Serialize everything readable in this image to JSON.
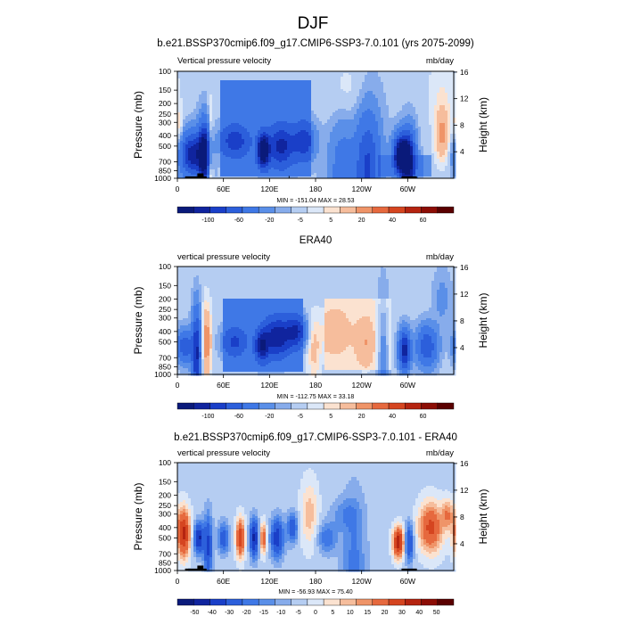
{
  "page": {
    "title": "DJF"
  },
  "chart_data": [
    {
      "type": "heatmap",
      "title": "b.e21.BSSP370cmip6.f09_g17.CMIP6-SSP3-7.0.101 (yrs 2075-2099)",
      "left_string": "Vertical pressure velocity",
      "right_string": "mb/day",
      "ylabel": "Pressure (mb)",
      "ylabel_right": "Height (km)",
      "x_ticks": [
        "0",
        "60E",
        "120E",
        "180",
        "120W",
        "60W"
      ],
      "y_ticks": [
        "100",
        "150",
        "200",
        "250",
        "300",
        "400",
        "500",
        "700",
        "850",
        "1000"
      ],
      "height_ticks": [
        "16",
        "12",
        "8",
        "4"
      ],
      "minmax": "MIN = -151.04  MAX = 28.53",
      "colorbar_labels": [
        "-100",
        "-60",
        "-20",
        "-5",
        "5",
        "20",
        "40",
        "60"
      ],
      "levels": [
        -150,
        -100,
        -80,
        -60,
        -40,
        -20,
        -10,
        -5,
        0,
        5,
        10,
        20,
        30,
        40,
        50,
        60,
        80
      ],
      "colors": [
        "#0a1a7a",
        "#10249e",
        "#1a3fc8",
        "#2c5fdb",
        "#3f78e6",
        "#5a8fe8",
        "#87aceb",
        "#b5cdf2",
        "#dbe7f8",
        "#fbe2d0",
        "#f6bd9c",
        "#ef9468",
        "#e6693e",
        "#d54520",
        "#b52410",
        "#8c0d05",
        "#5a0000"
      ],
      "features": [
        {
          "lon": 20,
          "w": 22,
          "p": 600,
          "h": 520,
          "v": -90
        },
        {
          "lon": 35,
          "w": 10,
          "p": 600,
          "h": 420,
          "v": -110
        },
        {
          "lon": 43,
          "w": 5,
          "p": 800,
          "h": 300,
          "v": 25
        },
        {
          "lon": 75,
          "w": 25,
          "p": 450,
          "h": 450,
          "v": -45
        },
        {
          "lon": 112,
          "w": 10,
          "p": 550,
          "h": 550,
          "v": -120
        },
        {
          "lon": 135,
          "w": 22,
          "p": 500,
          "h": 550,
          "v": -60
        },
        {
          "lon": 165,
          "w": 20,
          "p": 450,
          "h": 420,
          "v": -45
        },
        {
          "lon": 218,
          "w": 35,
          "p": 180,
          "h": 100,
          "v": 10
        },
        {
          "lon": 215,
          "w": 25,
          "p": 880,
          "h": 260,
          "v": -25
        },
        {
          "lon": 248,
          "w": 22,
          "p": 800,
          "h": 320,
          "v": -60
        },
        {
          "lon": 292,
          "w": 14,
          "p": 600,
          "h": 550,
          "v": -130
        },
        {
          "lon": 302,
          "w": 12,
          "p": 700,
          "h": 500,
          "v": -80
        },
        {
          "lon": 345,
          "w": 14,
          "p": 400,
          "h": 300,
          "v": 25
        },
        {
          "lon": 345,
          "w": 30,
          "p": 150,
          "h": 80,
          "v": 8
        },
        {
          "lon": 3,
          "w": 5,
          "p": 350,
          "h": 300,
          "v": 12
        }
      ],
      "fields": [
        {
          "lat_lo": 55,
          "lat_hi": 175,
          "p_lo": 120,
          "p_hi": 950,
          "v": -25
        },
        {
          "lat_lo": 260,
          "lat_hi": 330,
          "p_lo": 600,
          "p_hi": 950,
          "v": -15
        }
      ],
      "background": -4,
      "topo": [
        [
          10,
          38,
          960
        ],
        [
          26,
          34,
          900
        ],
        [
          145,
          146,
          950
        ],
        [
          292,
          312,
          960
        ]
      ]
    },
    {
      "type": "heatmap",
      "title": "ERA40",
      "left_string": "vertical pressure velocity",
      "right_string": "mb/day",
      "ylabel": "Pressure (mb)",
      "ylabel_right": "Height (km)",
      "x_ticks": [
        "0",
        "60E",
        "120E",
        "180",
        "120W",
        "60W"
      ],
      "y_ticks": [
        "100",
        "150",
        "200",
        "250",
        "300",
        "400",
        "500",
        "700",
        "850",
        "1000"
      ],
      "height_ticks": [
        "16",
        "12",
        "8",
        "4"
      ],
      "minmax": "MIN = -112.75  MAX = 33.18",
      "colorbar_labels": [
        "-100",
        "-60",
        "-20",
        "-5",
        "5",
        "20",
        "40",
        "60"
      ],
      "levels": [
        -150,
        -100,
        -80,
        -60,
        -40,
        -20,
        -10,
        -5,
        0,
        5,
        10,
        20,
        30,
        40,
        50,
        60,
        80
      ],
      "colors": [
        "#0a1a7a",
        "#10249e",
        "#1a3fc8",
        "#2c5fdb",
        "#3f78e6",
        "#5a8fe8",
        "#87aceb",
        "#b5cdf2",
        "#dbe7f8",
        "#fbe2d0",
        "#f6bd9c",
        "#ef9468",
        "#e6693e",
        "#d54520",
        "#b52410",
        "#8c0d05",
        "#5a0000"
      ],
      "features": [
        {
          "lon": 10,
          "w": 14,
          "p": 550,
          "h": 550,
          "v": -55
        },
        {
          "lon": 25,
          "w": 8,
          "p": 650,
          "h": 350,
          "v": -80
        },
        {
          "lon": 38,
          "w": 9,
          "p": 500,
          "h": 300,
          "v": 30
        },
        {
          "lon": 75,
          "w": 22,
          "p": 500,
          "h": 500,
          "v": -40
        },
        {
          "lon": 110,
          "w": 12,
          "p": 550,
          "h": 550,
          "v": -70
        },
        {
          "lon": 130,
          "w": 25,
          "p": 450,
          "h": 500,
          "v": -70
        },
        {
          "lon": 155,
          "w": 18,
          "p": 400,
          "h": 400,
          "v": -55
        },
        {
          "lon": 178,
          "w": 12,
          "p": 600,
          "h": 400,
          "v": 15
        },
        {
          "lon": 205,
          "w": 30,
          "p": 400,
          "h": 500,
          "v": 12
        },
        {
          "lon": 245,
          "w": 18,
          "p": 500,
          "h": 400,
          "v": 15
        },
        {
          "lon": 268,
          "w": 10,
          "p": 800,
          "h": 250,
          "v": -20
        },
        {
          "lon": 296,
          "w": 10,
          "p": 600,
          "h": 550,
          "v": -90
        },
        {
          "lon": 325,
          "w": 18,
          "p": 550,
          "h": 500,
          "v": -55
        },
        {
          "lon": 345,
          "w": 16,
          "p": 200,
          "h": 150,
          "v": -10
        }
      ],
      "fields": [
        {
          "lat_lo": 60,
          "lat_hi": 165,
          "p_lo": 200,
          "p_hi": 950,
          "v": -22
        },
        {
          "lat_lo": 190,
          "lat_hi": 280,
          "p_lo": 200,
          "p_hi": 900,
          "v": 8
        }
      ],
      "background": -3,
      "topo": []
    },
    {
      "type": "heatmap",
      "title": "b.e21.BSSP370cmip6.f09_g17.CMIP6-SSP3-7.0.101 - ERA40",
      "left_string": "vertical pressure velocity",
      "right_string": "mb/day",
      "ylabel": "Pressure (mb)",
      "ylabel_right": "Height (km)",
      "x_ticks": [
        "0",
        "60E",
        "120E",
        "180",
        "120W",
        "60W"
      ],
      "y_ticks": [
        "100",
        "150",
        "200",
        "250",
        "300",
        "400",
        "500",
        "700",
        "850",
        "1000"
      ],
      "height_ticks": [
        "16",
        "12",
        "8",
        "4"
      ],
      "minmax": "MIN = -56.93  MAX = 75.40",
      "colorbar_labels": [
        "-50",
        "-40",
        "-30",
        "-20",
        "-15",
        "-10",
        "-5",
        "0",
        "5",
        "10",
        "15",
        "20",
        "30",
        "40",
        "50"
      ],
      "levels": [
        -60,
        -50,
        -40,
        -30,
        -20,
        -15,
        -10,
        -5,
        0,
        5,
        10,
        15,
        20,
        30,
        40,
        50,
        60
      ],
      "colors": [
        "#0a1a7a",
        "#10249e",
        "#1a3fc8",
        "#2c5fdb",
        "#3f78e6",
        "#5a8fe8",
        "#87aceb",
        "#b5cdf2",
        "#dbe7f8",
        "#fbe2d0",
        "#f6bd9c",
        "#ef9468",
        "#e6693e",
        "#d54520",
        "#b52410",
        "#8c0d05",
        "#5a0000"
      ],
      "features": [
        {
          "lon": 8,
          "w": 12,
          "p": 450,
          "h": 550,
          "v": 45
        },
        {
          "lon": 28,
          "w": 9,
          "p": 500,
          "h": 500,
          "v": -40
        },
        {
          "lon": 40,
          "w": 8,
          "p": 600,
          "h": 400,
          "v": -30
        },
        {
          "lon": 60,
          "w": 10,
          "p": 500,
          "h": 500,
          "v": -25
        },
        {
          "lon": 82,
          "w": 8,
          "p": 500,
          "h": 550,
          "v": 40
        },
        {
          "lon": 100,
          "w": 8,
          "p": 500,
          "h": 550,
          "v": -40
        },
        {
          "lon": 112,
          "w": 6,
          "p": 500,
          "h": 500,
          "v": 30
        },
        {
          "lon": 130,
          "w": 12,
          "p": 500,
          "h": 450,
          "v": -35
        },
        {
          "lon": 150,
          "w": 10,
          "p": 400,
          "h": 400,
          "v": -25
        },
        {
          "lon": 172,
          "w": 16,
          "p": 300,
          "h": 450,
          "v": 15
        },
        {
          "lon": 195,
          "w": 18,
          "p": 500,
          "h": 500,
          "v": -18
        },
        {
          "lon": 218,
          "w": 25,
          "p": 300,
          "h": 300,
          "v": -10
        },
        {
          "lon": 230,
          "w": 22,
          "p": 850,
          "h": 250,
          "v": -15
        },
        {
          "lon": 288,
          "w": 10,
          "p": 550,
          "h": 550,
          "v": 50
        },
        {
          "lon": 302,
          "w": 8,
          "p": 550,
          "h": 500,
          "v": -30
        },
        {
          "lon": 330,
          "w": 22,
          "p": 400,
          "h": 500,
          "v": 35
        },
        {
          "lon": 352,
          "w": 10,
          "p": 300,
          "h": 300,
          "v": 20
        }
      ],
      "fields": [],
      "background": -2,
      "topo": [
        [
          10,
          38,
          960
        ],
        [
          26,
          34,
          900
        ],
        [
          292,
          312,
          960
        ]
      ]
    }
  ]
}
